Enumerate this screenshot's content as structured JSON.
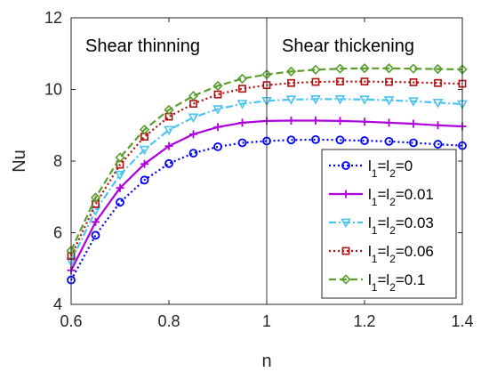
{
  "chart_data": {
    "type": "line",
    "xlabel": "n",
    "ylabel": "Nu",
    "xlim": [
      0.6,
      1.4
    ],
    "ylim": [
      4,
      12
    ],
    "xticks": [
      "0.6",
      "0.8",
      "1",
      "1.2",
      "1.4"
    ],
    "yticks": [
      "4",
      "6",
      "8",
      "10",
      "12"
    ],
    "grid": false,
    "legend_position": "lower-right",
    "annotations": [
      "Shear thinning",
      "Shear thickening"
    ],
    "divider_x": 1,
    "x": [
      0.6,
      0.65,
      0.7,
      0.75,
      0.8,
      0.85,
      0.9,
      0.95,
      1.0,
      1.05,
      1.1,
      1.15,
      1.2,
      1.25,
      1.3,
      1.35,
      1.4
    ],
    "series": [
      {
        "name": "l1=l2=0",
        "legend_parts": [
          "l",
          "1",
          "=l",
          "2",
          "=0"
        ],
        "color": "#0000ff",
        "dash": "dotted",
        "marker": "circle",
        "values": [
          4.68,
          5.93,
          6.85,
          7.47,
          7.93,
          8.22,
          8.4,
          8.51,
          8.56,
          8.59,
          8.6,
          8.59,
          8.57,
          8.55,
          8.51,
          8.47,
          8.43
        ]
      },
      {
        "name": "l1=l2=0.01",
        "legend_parts": [
          "l",
          "1",
          "=l",
          "2",
          "=0.01"
        ],
        "color": "#b000e0",
        "dash": "solid",
        "marker": "plus",
        "values": [
          4.95,
          6.3,
          7.25,
          7.92,
          8.42,
          8.75,
          8.95,
          9.07,
          9.12,
          9.13,
          9.13,
          9.12,
          9.1,
          9.07,
          9.04,
          9.0,
          8.97
        ]
      },
      {
        "name": "l1=l2=0.03",
        "legend_parts": [
          "l",
          "1",
          "=l",
          "2",
          "=0.03"
        ],
        "color": "#4dc3f0",
        "dash": "dashdot",
        "marker": "triangle-down",
        "values": [
          5.2,
          6.62,
          7.62,
          8.32,
          8.87,
          9.22,
          9.45,
          9.6,
          9.68,
          9.72,
          9.73,
          9.73,
          9.72,
          9.7,
          9.67,
          9.63,
          9.59
        ]
      },
      {
        "name": "l1=l2=0.06",
        "legend_parts": [
          "l",
          "1",
          "=l",
          "2",
          "=0.06"
        ],
        "color": "#b01010",
        "dash": "dotted",
        "marker": "square",
        "values": [
          5.35,
          6.8,
          7.9,
          8.68,
          9.24,
          9.6,
          9.86,
          10.02,
          10.12,
          10.18,
          10.21,
          10.22,
          10.22,
          10.21,
          10.2,
          10.18,
          10.16
        ]
      },
      {
        "name": "l1=l2=0.1",
        "legend_parts": [
          "l",
          "1",
          "=l",
          "2",
          "=0.1"
        ],
        "color": "#5a9e2e",
        "dash": "dashed",
        "marker": "diamond",
        "values": [
          5.5,
          6.98,
          8.1,
          8.88,
          9.43,
          9.82,
          10.1,
          10.3,
          10.42,
          10.5,
          10.55,
          10.58,
          10.59,
          10.59,
          10.58,
          10.57,
          10.56
        ]
      }
    ]
  }
}
